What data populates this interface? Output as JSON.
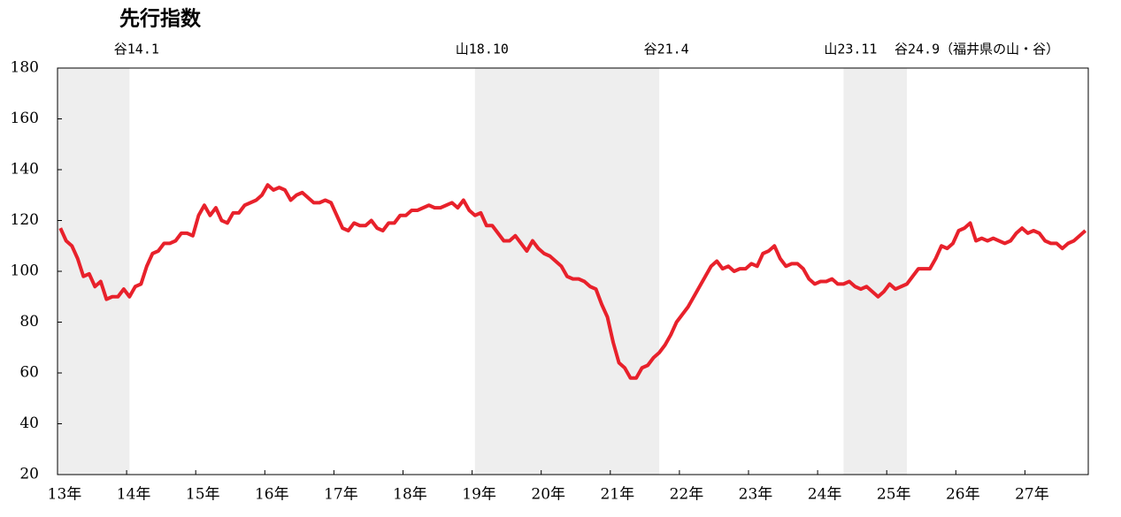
{
  "chart_data": {
    "type": "line",
    "title": "先行指数",
    "categories": [
      "13年",
      null,
      null,
      null,
      null,
      null,
      null,
      null,
      null,
      null,
      null,
      null,
      "14年",
      null,
      null,
      null,
      null,
      null,
      null,
      null,
      null,
      null,
      null,
      null,
      "15年",
      null,
      null,
      null,
      null,
      null,
      null,
      null,
      null,
      null,
      null,
      null,
      "16年",
      null,
      null,
      null,
      null,
      null,
      null,
      null,
      null,
      null,
      null,
      null,
      "17年",
      null,
      null,
      null,
      null,
      null,
      null,
      null,
      null,
      null,
      null,
      null,
      "18年",
      null,
      null,
      null,
      null,
      null,
      null,
      null,
      null,
      null,
      null,
      null,
      "19年",
      null,
      null,
      null,
      null,
      null,
      null,
      null,
      null,
      null,
      null,
      null,
      "20年",
      null,
      null,
      null,
      null,
      null,
      null,
      null,
      null,
      null,
      null,
      null,
      "21年",
      null,
      null,
      null,
      null,
      null,
      null,
      null,
      null,
      null,
      null,
      null,
      "22年",
      null,
      null,
      null,
      null,
      null,
      null,
      null,
      null,
      null,
      null,
      null,
      "23年",
      null,
      null,
      null,
      null,
      null,
      null,
      null,
      null,
      null,
      null,
      null,
      "24年",
      null,
      null,
      null,
      null,
      null,
      null,
      null,
      null,
      null,
      null,
      null,
      "25年",
      null,
      null,
      null,
      null,
      null,
      null,
      null,
      null,
      null,
      null,
      null,
      "26年",
      null,
      null,
      null,
      null,
      null,
      null,
      null,
      null,
      null,
      null,
      null,
      "27年",
      null,
      null,
      null,
      null,
      null,
      null,
      null,
      null,
      null,
      null
    ],
    "series": [
      {
        "color": "#e8212b",
        "values": [
          117,
          112,
          110,
          105,
          98,
          99,
          94,
          96,
          89,
          90,
          90,
          93,
          90,
          94,
          95,
          102,
          107,
          108,
          111,
          111,
          112,
          115,
          115,
          114,
          122,
          126,
          122,
          125,
          120,
          119,
          123,
          123,
          126,
          127,
          128,
          130,
          134,
          132,
          133,
          132,
          128,
          130,
          131,
          129,
          127,
          127,
          128,
          127,
          122,
          117,
          116,
          119,
          118,
          118,
          120,
          117,
          116,
          119,
          119,
          122,
          122,
          124,
          124,
          125,
          126,
          125,
          125,
          126,
          127,
          125,
          128,
          124,
          122,
          123,
          118,
          118,
          115,
          112,
          112,
          114,
          111,
          108,
          112,
          109,
          107,
          106,
          104,
          102,
          98,
          97,
          97,
          96,
          94,
          93,
          87,
          82,
          72,
          64,
          62,
          58,
          58,
          62,
          63,
          66,
          68,
          71,
          75,
          80,
          83,
          86,
          90,
          94,
          98,
          102,
          104,
          101,
          102,
          100,
          101,
          101,
          103,
          102,
          107,
          108,
          110,
          105,
          102,
          103,
          103,
          101,
          97,
          95,
          96,
          96,
          97,
          95,
          95,
          96,
          94,
          93,
          94,
          92,
          90,
          92,
          95,
          93,
          94,
          95,
          98,
          101,
          101,
          101,
          105,
          110,
          109,
          111,
          116,
          117,
          119,
          112,
          113,
          112,
          113,
          112,
          111,
          112,
          115,
          117,
          115,
          116,
          115,
          112,
          111,
          111,
          109,
          111,
          112,
          114,
          116
        ]
      }
    ],
    "ylim": [
      20,
      180
    ],
    "yticks": [
      20,
      40,
      60,
      80,
      100,
      120,
      140,
      160,
      180
    ],
    "bands": [
      {
        "start": 0,
        "end": 12,
        "color": "#eeeeee"
      },
      {
        "start": 72,
        "end": 104,
        "color": "#eeeeee"
      },
      {
        "start": 136,
        "end": 147,
        "color": "#eeeeee"
      }
    ],
    "annotations": [
      "谷14.1",
      "山18.10",
      "谷21.4",
      "山23.11",
      "谷24.9（福井県の山・谷）"
    ]
  }
}
